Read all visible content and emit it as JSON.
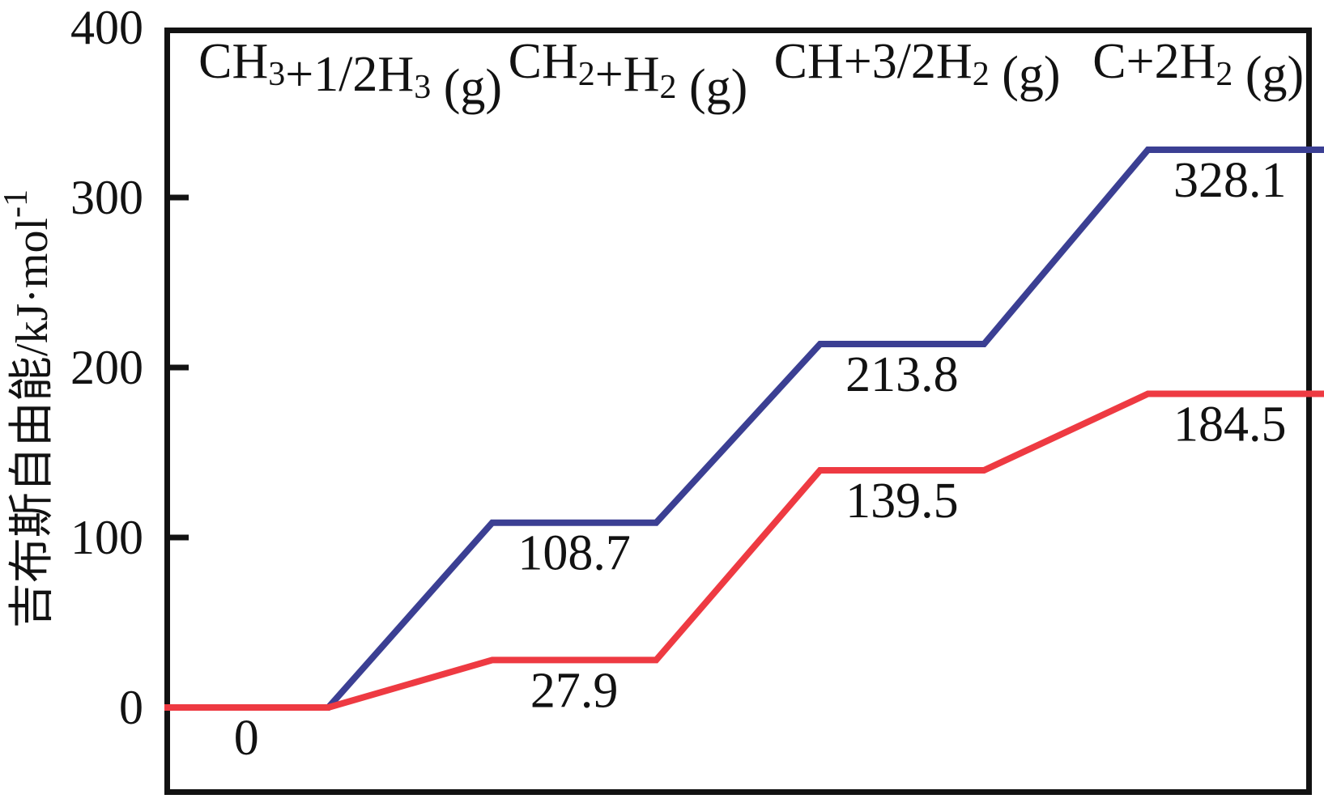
{
  "chart_data": {
    "type": "line",
    "subtype": "step-energy-diagram",
    "title": "",
    "xlabel": "",
    "ylabel": "吉布斯自由能/kJ·mol⁻¹",
    "ylabel_parts": [
      {
        "t": "吉布斯自由能/kJ·mol"
      },
      {
        "t": "-1",
        "sup": true
      }
    ],
    "ylim": [
      -48,
      400
    ],
    "yticks": [
      0,
      100,
      200,
      300,
      400
    ],
    "grid": false,
    "legend": "none",
    "categories": [
      "CH₃+1/2H₃ (g)",
      "CH₂+H₂ (g)",
      "CH+3/2H₂ (g)",
      "C+2H₂ (g)"
    ],
    "category_parts": [
      [
        {
          "t": "CH"
        },
        {
          "t": "3",
          "sub": true
        },
        {
          "t": "+1/2H"
        },
        {
          "t": "3",
          "sub": true
        },
        {
          "t": " (g)"
        }
      ],
      [
        {
          "t": "CH"
        },
        {
          "t": "2",
          "sub": true
        },
        {
          "t": "+H"
        },
        {
          "t": "2",
          "sub": true
        },
        {
          "t": " (g)"
        }
      ],
      [
        {
          "t": "CH+3/2H"
        },
        {
          "t": "2",
          "sub": true
        },
        {
          "t": " (g)"
        }
      ],
      [
        {
          "t": "C+2H"
        },
        {
          "t": "2",
          "sub": true
        },
        {
          "t": " (g)"
        }
      ]
    ],
    "series": [
      {
        "name": "upper-blue",
        "color": "#3b3f93",
        "values": [
          0,
          108.7,
          213.8,
          328.1
        ]
      },
      {
        "name": "lower-red",
        "color": "#ee3a42",
        "values": [
          0,
          27.9,
          139.5,
          184.5
        ]
      }
    ],
    "value_labels": {
      "shared_zero": "0",
      "blue": [
        "108.7",
        "213.8",
        "328.1"
      ],
      "red": [
        "27.9",
        "139.5",
        "184.5"
      ]
    },
    "axis_color": "#121212",
    "text_color": "#121212"
  }
}
